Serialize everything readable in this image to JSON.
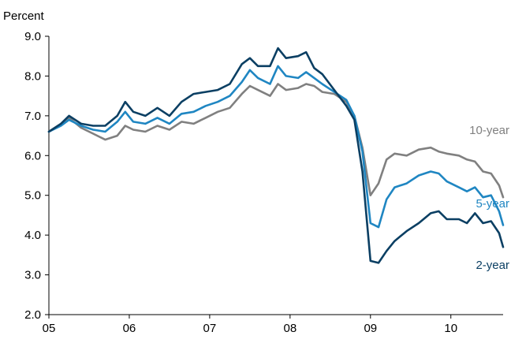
{
  "chart_data": {
    "type": "line",
    "title": "",
    "ylabel": "Percent",
    "xlabel": "",
    "ylim": [
      2.0,
      9.0
    ],
    "xlim": [
      2005.0,
      2010.65
    ],
    "y_ticks": [
      "2.0",
      "3.0",
      "4.0",
      "5.0",
      "6.0",
      "7.0",
      "8.0",
      "9.0"
    ],
    "x_ticks": [
      "05",
      "06",
      "07",
      "08",
      "09",
      "10"
    ],
    "grid": false,
    "legend": "direct labels at right end of lines",
    "x": [
      2005.0,
      2005.15,
      2005.25,
      2005.4,
      2005.55,
      2005.7,
      2005.85,
      2005.95,
      2006.05,
      2006.2,
      2006.35,
      2006.5,
      2006.65,
      2006.8,
      2006.95,
      2007.1,
      2007.25,
      2007.4,
      2007.5,
      2007.6,
      2007.75,
      2007.85,
      2007.95,
      2008.1,
      2008.2,
      2008.3,
      2008.4,
      2008.55,
      2008.7,
      2008.8,
      2008.9,
      2009.0,
      2009.1,
      2009.2,
      2009.3,
      2009.45,
      2009.6,
      2009.75,
      2009.85,
      2009.95,
      2010.1,
      2010.2,
      2010.3,
      2010.4,
      2010.5,
      2010.6,
      2010.65
    ],
    "series": [
      {
        "name": "10-year",
        "color": "#808080",
        "values": [
          6.6,
          6.8,
          6.95,
          6.7,
          6.55,
          6.4,
          6.5,
          6.75,
          6.65,
          6.6,
          6.75,
          6.65,
          6.85,
          6.8,
          6.95,
          7.1,
          7.2,
          7.55,
          7.75,
          7.65,
          7.5,
          7.8,
          7.65,
          7.7,
          7.8,
          7.75,
          7.6,
          7.55,
          7.35,
          7.0,
          6.2,
          5.0,
          5.3,
          5.9,
          6.05,
          6.0,
          6.15,
          6.2,
          6.1,
          6.05,
          6.0,
          5.9,
          5.85,
          5.6,
          5.55,
          5.25,
          4.95
        ]
      },
      {
        "name": "5-year",
        "color": "#1f86c2",
        "values": [
          6.6,
          6.75,
          6.9,
          6.75,
          6.65,
          6.6,
          6.85,
          7.1,
          6.85,
          6.8,
          6.95,
          6.8,
          7.05,
          7.1,
          7.25,
          7.35,
          7.5,
          7.85,
          8.15,
          7.95,
          7.8,
          8.25,
          8.0,
          7.95,
          8.1,
          7.95,
          7.8,
          7.6,
          7.4,
          7.0,
          6.1,
          4.3,
          4.2,
          4.9,
          5.2,
          5.3,
          5.5,
          5.6,
          5.55,
          5.35,
          5.2,
          5.1,
          5.2,
          4.95,
          5.0,
          4.6,
          4.25
        ]
      },
      {
        "name": "2-year",
        "color": "#0b3f63",
        "values": [
          6.6,
          6.8,
          7.0,
          6.8,
          6.75,
          6.75,
          7.0,
          7.35,
          7.1,
          7.0,
          7.2,
          7.0,
          7.35,
          7.55,
          7.6,
          7.65,
          7.8,
          8.3,
          8.45,
          8.25,
          8.25,
          8.7,
          8.45,
          8.5,
          8.6,
          8.2,
          8.05,
          7.65,
          7.25,
          6.9,
          5.6,
          3.35,
          3.3,
          3.6,
          3.85,
          4.1,
          4.3,
          4.55,
          4.6,
          4.4,
          4.4,
          4.3,
          4.55,
          4.3,
          4.35,
          4.05,
          3.7
        ]
      }
    ]
  }
}
